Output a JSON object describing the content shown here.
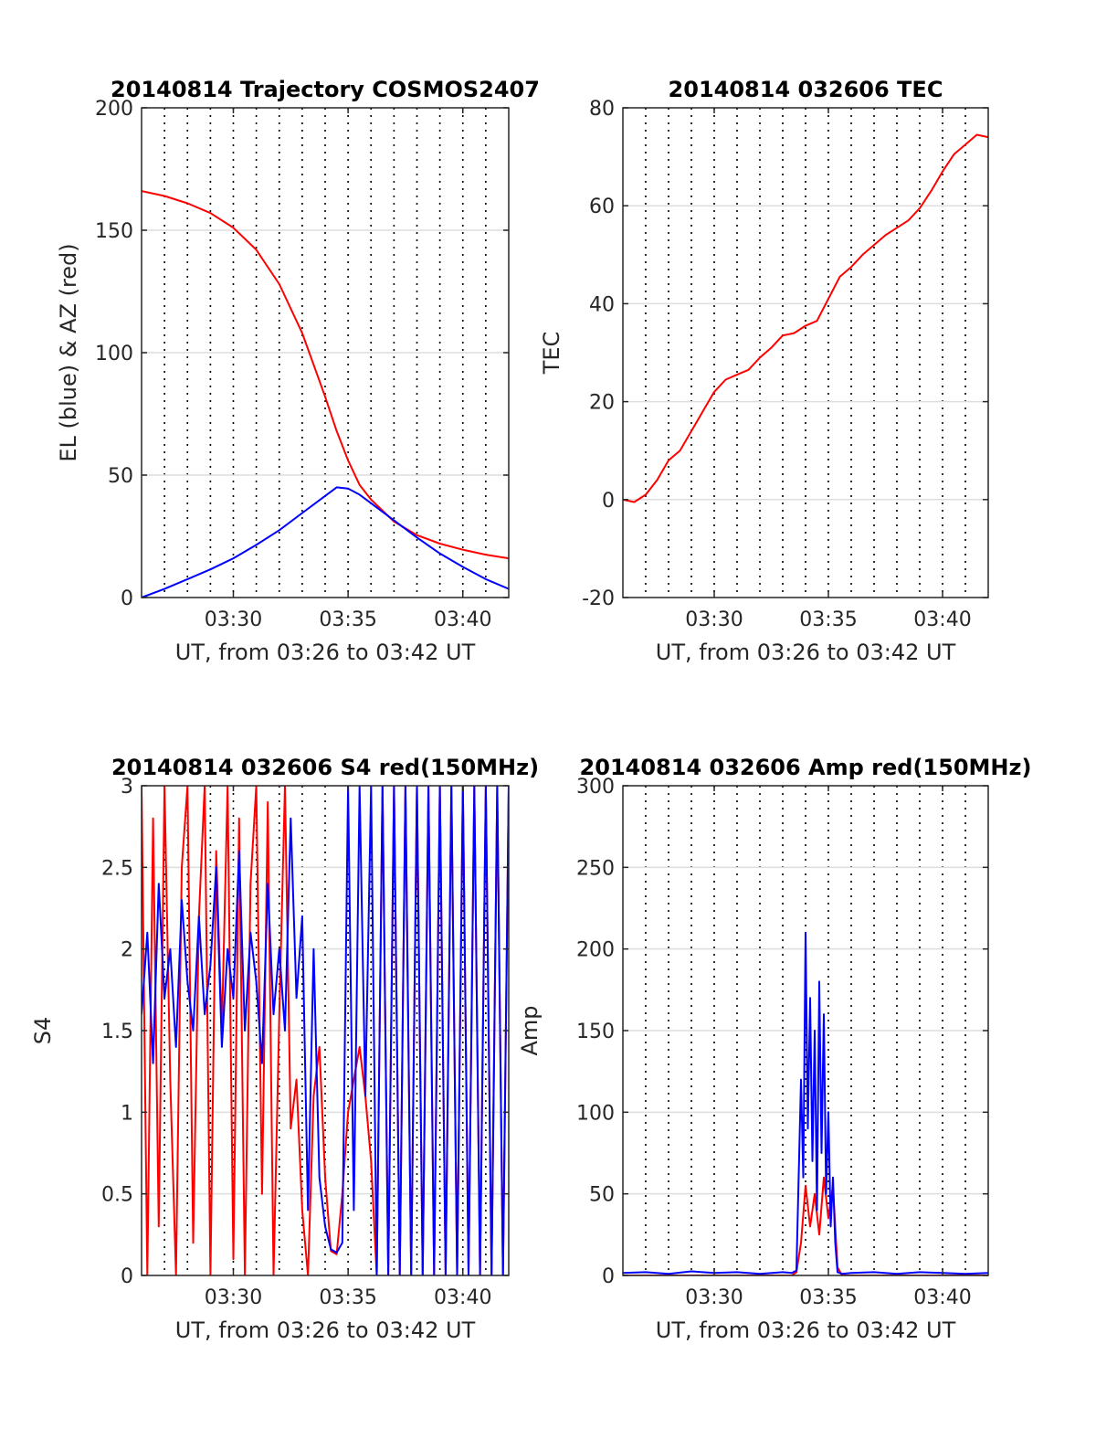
{
  "chart_data": [
    {
      "type": "line",
      "title": "20140814 Trajectory COSMOS2407",
      "xlabel": "UT, from 03:26 to 03:42 UT",
      "ylabel": "EL (blue) & AZ (red)",
      "xlim": [
        0,
        16
      ],
      "ylim": [
        0,
        200
      ],
      "xticks": [
        4,
        9,
        14
      ],
      "xticklabels": [
        "03:30",
        "03:35",
        "03:40"
      ],
      "yticks": [
        0,
        50,
        100,
        150,
        200
      ],
      "yticklabels": [
        "0",
        "50",
        "100",
        "150",
        "200"
      ],
      "grid": true,
      "series": [
        {
          "color": "#ff0000",
          "x": [
            0,
            1,
            2,
            3,
            4,
            5,
            6,
            7,
            8,
            8.5,
            9,
            9.5,
            10,
            11,
            12,
            13,
            14,
            15,
            16
          ],
          "values": [
            166,
            164,
            161,
            157,
            151,
            142,
            128,
            108,
            82,
            68,
            56,
            46,
            40,
            31,
            25.5,
            22,
            19.5,
            17.5,
            16
          ]
        },
        {
          "color": "#0000ff",
          "x": [
            0,
            1,
            2,
            3,
            4,
            5,
            6,
            7,
            8,
            8.5,
            9,
            9.5,
            10,
            11,
            12,
            13,
            14,
            15,
            16
          ],
          "values": [
            0,
            3.5,
            7.5,
            11.5,
            16,
            21.5,
            27.5,
            34.5,
            41.5,
            45,
            44.5,
            42,
            38.5,
            31.5,
            24.5,
            18,
            12.5,
            7.5,
            3.5
          ]
        }
      ]
    },
    {
      "type": "line",
      "title": "20140814 032606 TEC",
      "xlabel": "UT, from 03:26 to 03:42 UT",
      "ylabel": "TEC",
      "xlim": [
        0,
        16
      ],
      "ylim": [
        -20,
        80
      ],
      "xticks": [
        4,
        9,
        14
      ],
      "xticklabels": [
        "03:30",
        "03:35",
        "03:40"
      ],
      "yticks": [
        -20,
        0,
        20,
        40,
        60,
        80
      ],
      "yticklabels": [
        "-20",
        "0",
        "20",
        "40",
        "60",
        "80"
      ],
      "grid": true,
      "series": [
        {
          "color": "#ff0000",
          "x": [
            0,
            0.5,
            1,
            1.5,
            2,
            2.5,
            3,
            3.5,
            4,
            4.5,
            5,
            5.5,
            6,
            6.5,
            7,
            7.5,
            8,
            8.5,
            9,
            9.5,
            10,
            10.5,
            11,
            11.5,
            12,
            12.5,
            13,
            13.5,
            14,
            14.5,
            15,
            15.5,
            16
          ],
          "values": [
            0,
            -0.5,
            1,
            4,
            8,
            10,
            14,
            18,
            22,
            24.5,
            25.5,
            26.5,
            29,
            31,
            33.5,
            34,
            35.5,
            36.5,
            41,
            45.5,
            47.5,
            50,
            52,
            54,
            55.5,
            57,
            59.5,
            63,
            67,
            70.5,
            72.5,
            74.5,
            74
          ]
        }
      ]
    },
    {
      "type": "line",
      "title": "20140814 032606 S4 red(150MHz)",
      "xlabel": "UT, from 03:26 to 03:42 UT",
      "ylabel": "S4",
      "xlim": [
        0,
        16
      ],
      "ylim": [
        0,
        3
      ],
      "xticks": [
        4,
        9,
        14
      ],
      "xticklabels": [
        "03:30",
        "03:35",
        "03:40"
      ],
      "yticks": [
        0,
        0.5,
        1,
        1.5,
        2,
        2.5,
        3
      ],
      "yticklabels": [
        "0",
        "0.5",
        "1",
        "1.5",
        "2",
        "2.5",
        "3"
      ],
      "grid": true,
      "series": [
        {
          "color": "#ff0000",
          "x": [
            0,
            0.25,
            0.5,
            0.75,
            1,
            1.25,
            1.5,
            1.75,
            2,
            2.25,
            2.5,
            2.75,
            3,
            3.25,
            3.5,
            3.75,
            4,
            4.25,
            4.5,
            4.75,
            5,
            5.25,
            5.5,
            5.75,
            6,
            6.25,
            6.5,
            6.75,
            7,
            7.25,
            7.5,
            7.75,
            8,
            8.25,
            8.5,
            8.75,
            9,
            9.25,
            9.5,
            9.75,
            10,
            10.25,
            10.5,
            10.75,
            11,
            11.25,
            11.5,
            11.75,
            12,
            12.25,
            12.5,
            12.75,
            13,
            13.25,
            13.5,
            13.75,
            14,
            14.25,
            14.5,
            14.75,
            15,
            15.25,
            15.5,
            15.75,
            16
          ],
          "values": [
            3,
            0,
            2.8,
            0.3,
            3,
            1.2,
            0,
            2.5,
            3,
            0.2,
            2.2,
            3,
            0,
            2.6,
            1.5,
            3,
            0.1,
            2.8,
            0,
            2.4,
            3,
            0.5,
            2.9,
            0,
            1.6,
            3,
            0.9,
            1.2,
            0.4,
            0,
            1.1,
            1.4,
            0.6,
            0.15,
            0.13,
            0.5,
            1.0,
            1.2,
            1.4,
            1.1,
            0.7,
            0,
            3,
            0,
            3,
            0,
            3,
            0,
            3,
            0,
            3,
            0,
            3,
            0,
            3,
            0,
            3,
            0,
            3,
            0,
            3,
            0,
            3,
            0,
            3
          ]
        },
        {
          "color": "#0000ff",
          "x": [
            0,
            0.25,
            0.5,
            0.75,
            1,
            1.25,
            1.5,
            1.75,
            2,
            2.25,
            2.5,
            2.75,
            3,
            3.25,
            3.5,
            3.75,
            4,
            4.25,
            4.5,
            4.75,
            5,
            5.25,
            5.5,
            5.75,
            6,
            6.25,
            6.5,
            6.75,
            7,
            7.25,
            7.5,
            7.75,
            8,
            8.25,
            8.5,
            8.75,
            9,
            9.25,
            9.5,
            9.75,
            10,
            10.25,
            10.5,
            10.75,
            11,
            11.25,
            11.5,
            11.75,
            12,
            12.25,
            12.5,
            12.75,
            13,
            13.25,
            13.5,
            13.75,
            14,
            14.25,
            14.5,
            14.75,
            15,
            15.25,
            15.5,
            15.75,
            16
          ],
          "values": [
            1.6,
            2.1,
            1.3,
            2.4,
            1.7,
            2.0,
            1.4,
            2.3,
            1.8,
            1.5,
            2.2,
            1.6,
            1.9,
            2.5,
            1.4,
            2.0,
            1.7,
            2.6,
            1.5,
            2.1,
            1.8,
            1.3,
            2.4,
            1.6,
            2.0,
            1.5,
            2.8,
            1.7,
            2.2,
            0.4,
            2.0,
            0.6,
            0.3,
            0.16,
            0.14,
            0.2,
            3,
            0.4,
            3,
            1.1,
            3,
            0,
            3,
            0,
            3,
            0,
            3,
            0,
            3,
            0,
            3,
            0,
            3,
            0,
            3,
            0,
            3,
            0,
            3,
            0,
            3,
            0,
            3,
            0,
            3
          ]
        }
      ]
    },
    {
      "type": "line",
      "title": "20140814 032606 Amp red(150MHz)",
      "xlabel": "UT, from 03:26 to 03:42 UT",
      "ylabel": "Amp",
      "xlim": [
        0,
        16
      ],
      "ylim": [
        0,
        300
      ],
      "xticks": [
        4,
        9,
        14
      ],
      "xticklabels": [
        "03:30",
        "03:35",
        "03:40"
      ],
      "yticks": [
        0,
        50,
        100,
        150,
        200,
        250,
        300
      ],
      "yticklabels": [
        "0",
        "50",
        "100",
        "150",
        "200",
        "250",
        "300"
      ],
      "grid": true,
      "series": [
        {
          "color": "#ff0000",
          "x": [
            0,
            7.4,
            7.6,
            7.8,
            8.0,
            8.2,
            8.4,
            8.6,
            8.8,
            9.0,
            9.2,
            9.4,
            9.6,
            16
          ],
          "values": [
            0,
            0,
            2,
            20,
            55,
            30,
            50,
            25,
            60,
            35,
            55,
            5,
            0,
            0
          ]
        },
        {
          "color": "#0000ff",
          "x": [
            0,
            1,
            2,
            3,
            4,
            5,
            6,
            7,
            7.4,
            7.6,
            7.8,
            7.9,
            8.0,
            8.1,
            8.2,
            8.3,
            8.4,
            8.5,
            8.6,
            8.7,
            8.8,
            8.9,
            9.0,
            9.1,
            9.2,
            9.3,
            9.4,
            9.6,
            10,
            11,
            12,
            13,
            14,
            15,
            16
          ],
          "values": [
            1.5,
            2,
            1,
            2.5,
            1.5,
            2,
            1,
            2,
            1.5,
            3,
            120,
            60,
            210,
            90,
            170,
            70,
            150,
            40,
            180,
            75,
            160,
            50,
            100,
            30,
            60,
            20,
            2,
            1,
            1.5,
            2,
            1,
            2,
            1.5,
            1,
            1.5
          ]
        }
      ]
    }
  ]
}
